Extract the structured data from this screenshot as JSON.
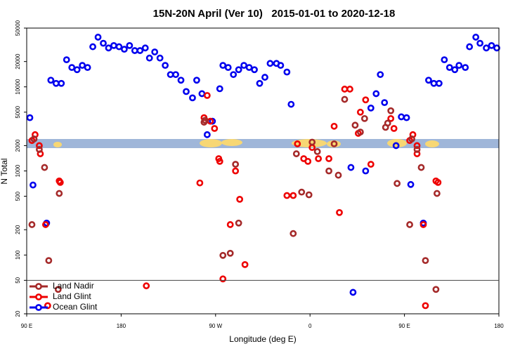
{
  "chart_data": {
    "type": "scatter",
    "title": "15N-20N April (Ver 10)   2015-01-01 to 2020-12-18",
    "x_label": "Longitude (deg E)",
    "y_label": "N Total",
    "log_y": true,
    "legend": "lower left",
    "hline": 50,
    "xlim": [
      90,
      540
    ],
    "xticks": [
      {
        "value": 90,
        "label": "90 E"
      },
      {
        "value": 180,
        "label": "180"
      },
      {
        "value": 270,
        "label": "90 W"
      },
      {
        "value": 360,
        "label": "0"
      },
      {
        "value": 450,
        "label": "90 E"
      },
      {
        "value": 540,
        "label": "180"
      }
    ],
    "ylim": [
      20,
      50000
    ],
    "yticks": [
      20,
      50,
      100,
      200,
      500,
      1000,
      2000,
      5000,
      10000,
      20000,
      50000
    ],
    "series": [
      {
        "name": "Ocean Glint",
        "color": "#0000ee",
        "x": [
          93,
          96,
          109,
          113,
          118,
          123,
          128,
          133,
          138,
          143,
          148,
          153,
          158,
          163,
          168,
          173,
          178,
          183,
          188,
          193,
          198,
          203,
          207,
          212,
          217,
          222,
          227,
          232,
          237,
          242,
          248,
          252,
          257,
          262,
          267,
          274,
          277,
          282,
          287,
          292,
          297,
          302,
          307,
          312,
          317,
          322,
          328,
          332,
          338,
          342,
          399,
          401,
          413,
          418,
          423,
          427,
          431,
          442,
          447,
          452,
          456,
          468,
          473,
          478,
          483,
          488,
          493,
          498,
          502,
          508,
          512,
          518,
          522,
          528,
          533,
          538
        ],
        "values": [
          4300,
          680,
          240,
          12000,
          11000,
          11000,
          21000,
          17000,
          16000,
          18000,
          17000,
          30000,
          39000,
          33000,
          29000,
          31000,
          30000,
          28000,
          31000,
          27000,
          27000,
          29000,
          22000,
          26000,
          22000,
          18000,
          14000,
          14000,
          12000,
          8800,
          7400,
          12000,
          8300,
          2700,
          3900,
          9500,
          18000,
          17000,
          14000,
          16000,
          18000,
          17000,
          16000,
          11000,
          13000,
          19000,
          19000,
          18000,
          15000,
          6200,
          1100,
          36,
          1000,
          5600,
          8300,
          14000,
          6500,
          2000,
          4400,
          4300,
          690,
          240,
          12000,
          11000,
          11000,
          21000,
          17000,
          16000,
          18000,
          17000,
          30000,
          39000,
          33000,
          29000,
          31000,
          29000
        ]
      },
      {
        "name": "Land Glint",
        "color": "#ee0000",
        "x": [
          95,
          98,
          102,
          103,
          108,
          121,
          122,
          110,
          204,
          255,
          259,
          262,
          265,
          269,
          273,
          274,
          277,
          284,
          289,
          293,
          298,
          338,
          344,
          348,
          354,
          358,
          362,
          368,
          378,
          383,
          388,
          393,
          398,
          406,
          408,
          413,
          418,
          437,
          440,
          455,
          458,
          462,
          462,
          468,
          470,
          480,
          482
        ],
        "values": [
          2300,
          2700,
          2000,
          1600,
          230,
          760,
          730,
          25,
          43,
          720,
          4300,
          7900,
          3900,
          3200,
          1400,
          1300,
          52,
          230,
          1000,
          460,
          77,
          510,
          510,
          2100,
          1400,
          1300,
          1900,
          1400,
          1400,
          3400,
          320,
          9400,
          9400,
          2800,
          5000,
          7000,
          1200,
          4200,
          3200,
          2300,
          2700,
          2000,
          1600,
          230,
          25,
          760,
          730
        ]
      },
      {
        "name": "Land Nadir",
        "color": "#a52a2a",
        "x": [
          95,
          97,
          102,
          107,
          111,
          120,
          121,
          259,
          260,
          277,
          284,
          289,
          292,
          344,
          347,
          352,
          359,
          362,
          367,
          378,
          387,
          383,
          393,
          403,
          408,
          412,
          432,
          434,
          437,
          443,
          455,
          457,
          462,
          466,
          470,
          480,
          481
        ],
        "values": [
          230,
          2400,
          1800,
          1100,
          86,
          39,
          540,
          3800,
          4000,
          99,
          105,
          1200,
          240,
          180,
          1600,
          560,
          520,
          2200,
          1700,
          1000,
          890,
          2100,
          7100,
          3500,
          2900,
          4200,
          3300,
          3700,
          5200,
          710,
          230,
          2400,
          1800,
          1100,
          86,
          39,
          540
        ]
      }
    ]
  }
}
